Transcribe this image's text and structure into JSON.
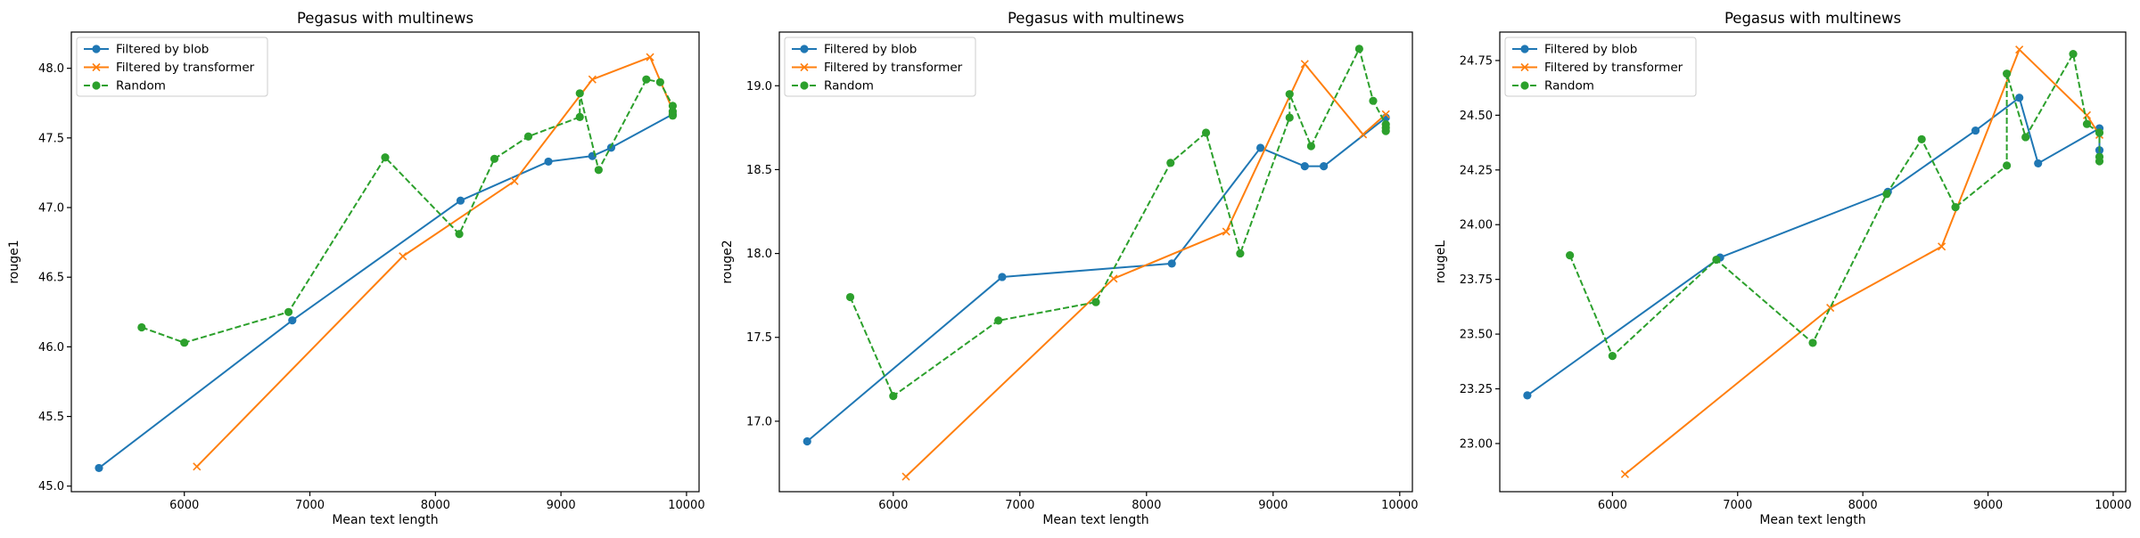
{
  "colors": {
    "blob": "#1f77b4",
    "transformer": "#ff7f0e",
    "random": "#2ca02c"
  },
  "chart_data": [
    {
      "type": "line",
      "title": "Pegasus with multinews",
      "xlabel": "Mean text length",
      "ylabel": "rouge1",
      "xlim": [
        5100,
        10100
      ],
      "ylim": [
        44.96,
        48.26
      ],
      "xticks": [
        6000,
        7000,
        8000,
        9000,
        10000
      ],
      "yticks": [
        45.0,
        45.5,
        46.0,
        46.5,
        47.0,
        47.5,
        48.0
      ],
      "ytick_labels": [
        "45.0",
        "45.5",
        "46.0",
        "46.5",
        "47.0",
        "47.5",
        "48.0"
      ],
      "legend_position": "upper-left",
      "series": [
        {
          "name": "Filtered by blob",
          "color": "#1f77b4",
          "marker": "circle",
          "linestyle": "solid",
          "x": [
            5320,
            6860,
            8200,
            8900,
            9250,
            9400,
            9890
          ],
          "y": [
            45.13,
            46.19,
            47.05,
            47.33,
            47.37,
            47.43,
            47.67
          ]
        },
        {
          "name": "Filtered by transformer",
          "color": "#ff7f0e",
          "marker": "x",
          "linestyle": "solid",
          "x": [
            6100,
            7740,
            8630,
            9250,
            9710,
            9890
          ],
          "y": [
            45.14,
            46.65,
            47.19,
            47.92,
            48.08,
            47.7
          ]
        },
        {
          "name": "Random",
          "color": "#2ca02c",
          "marker": "circle",
          "linestyle": "dashed",
          "x": [
            5660,
            6000,
            6830,
            7600,
            8190,
            8470,
            8740,
            9150,
            9150,
            9300,
            9680,
            9790,
            9890,
            9890,
            9890
          ],
          "y": [
            46.14,
            46.03,
            46.25,
            47.36,
            46.81,
            47.35,
            47.51,
            47.65,
            47.82,
            47.27,
            47.92,
            47.9,
            47.73,
            47.69,
            47.66
          ]
        }
      ]
    },
    {
      "type": "line",
      "title": "Pegasus with multinews",
      "xlabel": "Mean text length",
      "ylabel": "rouge2",
      "xlim": [
        5100,
        10100
      ],
      "ylim": [
        16.58,
        19.32
      ],
      "xticks": [
        6000,
        7000,
        8000,
        9000,
        10000
      ],
      "yticks": [
        17.0,
        17.5,
        18.0,
        18.5,
        19.0
      ],
      "ytick_labels": [
        "17.0",
        "17.5",
        "18.0",
        "18.5",
        "19.0"
      ],
      "legend_position": "upper-left",
      "series": [
        {
          "name": "Filtered by blob",
          "color": "#1f77b4",
          "marker": "circle",
          "linestyle": "solid",
          "x": [
            5320,
            6860,
            8200,
            8900,
            9250,
            9400,
            9890
          ],
          "y": [
            16.88,
            17.86,
            17.94,
            18.63,
            18.52,
            18.52,
            18.81
          ]
        },
        {
          "name": "Filtered by transformer",
          "color": "#ff7f0e",
          "marker": "x",
          "linestyle": "solid",
          "x": [
            6100,
            7740,
            8630,
            9250,
            9710,
            9890
          ],
          "y": [
            16.67,
            17.85,
            18.13,
            19.13,
            18.71,
            18.83
          ]
        },
        {
          "name": "Random",
          "color": "#2ca02c",
          "marker": "circle",
          "linestyle": "dashed",
          "x": [
            5660,
            6000,
            6830,
            7600,
            8190,
            8470,
            8740,
            9130,
            9130,
            9300,
            9680,
            9790,
            9890,
            9890,
            9890
          ],
          "y": [
            17.74,
            17.15,
            17.6,
            17.71,
            18.54,
            18.72,
            18.0,
            18.81,
            18.95,
            18.64,
            19.22,
            18.91,
            18.77,
            18.75,
            18.73
          ]
        }
      ]
    },
    {
      "type": "line",
      "title": "Pegasus with multinews",
      "xlabel": "Mean text length",
      "ylabel": "rougeL",
      "xlim": [
        5100,
        10100
      ],
      "ylim": [
        22.78,
        24.88
      ],
      "xticks": [
        6000,
        7000,
        8000,
        9000,
        10000
      ],
      "yticks": [
        23.0,
        23.25,
        23.5,
        23.75,
        24.0,
        24.25,
        24.5,
        24.75
      ],
      "ytick_labels": [
        "23.00",
        "23.25",
        "23.50",
        "23.75",
        "24.00",
        "24.25",
        "24.50",
        "24.75"
      ],
      "legend_position": "upper-left",
      "series": [
        {
          "name": "Filtered by blob",
          "color": "#1f77b4",
          "marker": "circle",
          "linestyle": "solid",
          "x": [
            5320,
            6860,
            8200,
            8900,
            9250,
            9400,
            9890,
            9890
          ],
          "y": [
            23.22,
            23.85,
            24.15,
            24.43,
            24.58,
            24.28,
            24.44,
            24.34
          ]
        },
        {
          "name": "Filtered by transformer",
          "color": "#ff7f0e",
          "marker": "x",
          "linestyle": "solid",
          "x": [
            6100,
            7740,
            8630,
            9250,
            9790,
            9890
          ],
          "y": [
            22.86,
            23.62,
            23.9,
            24.8,
            24.5,
            24.41
          ]
        },
        {
          "name": "Random",
          "color": "#2ca02c",
          "marker": "circle",
          "linestyle": "dashed",
          "x": [
            5660,
            6000,
            6830,
            7600,
            8190,
            8470,
            8740,
            9150,
            9150,
            9300,
            9680,
            9790,
            9890,
            9890,
            9890
          ],
          "y": [
            23.86,
            23.4,
            23.84,
            23.46,
            24.14,
            24.39,
            24.08,
            24.27,
            24.69,
            24.4,
            24.78,
            24.46,
            24.42,
            24.31,
            24.29
          ]
        }
      ]
    }
  ]
}
